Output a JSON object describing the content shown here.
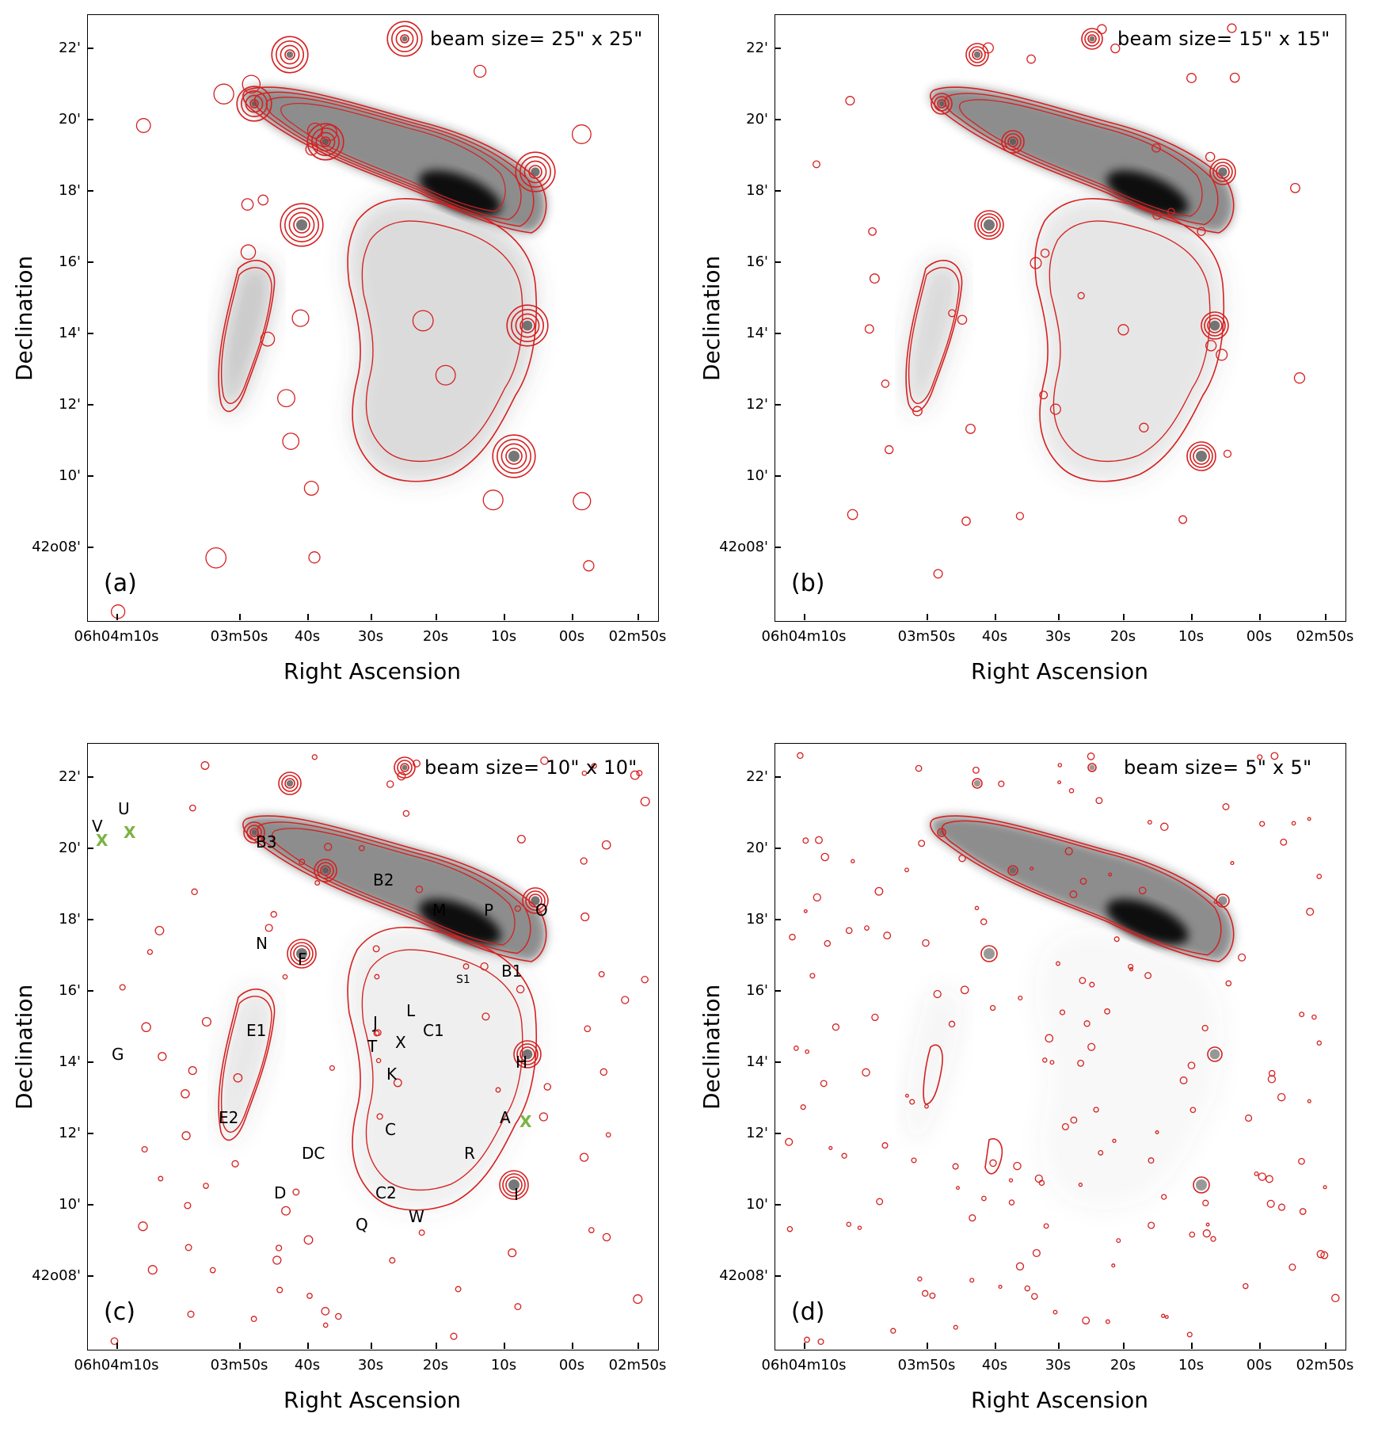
{
  "figure": {
    "x_axis_title": "Right Ascension",
    "y_axis_title": "Declination",
    "x_ticks": [
      "06h04m10s",
      "03m50s",
      "40s",
      "30s",
      "20s",
      "10s",
      "00s",
      "02m50s"
    ],
    "y_ticks": [
      "22'",
      "20'",
      "18'",
      "16'",
      "14'",
      "12'",
      "10'",
      "42o08'"
    ],
    "contour_color": "#d62020",
    "marker_color": "#7cb342"
  },
  "panels": [
    {
      "id": "a",
      "label": "(a)",
      "beam": "beam size= 25\" x 25\""
    },
    {
      "id": "b",
      "label": "(b)",
      "beam": "beam size= 15\" x 15\""
    },
    {
      "id": "c",
      "label": "(c)",
      "beam": "beam size= 10\" x 10\""
    },
    {
      "id": "d",
      "label": "(d)",
      "beam": "beam size= 5\" x 5\""
    }
  ],
  "sources_c": [
    "B3",
    "B2",
    "M",
    "P",
    "O",
    "N",
    "F",
    "B1",
    "S1",
    "E1",
    "J",
    "L",
    "C1",
    "T",
    "X",
    "G",
    "H",
    "K",
    "E2",
    "A",
    "C",
    "R",
    "DC",
    "D",
    "C2",
    "I",
    "Q",
    "W",
    "U",
    "V"
  ],
  "markers_c": [
    "X",
    "X",
    "X"
  ]
}
